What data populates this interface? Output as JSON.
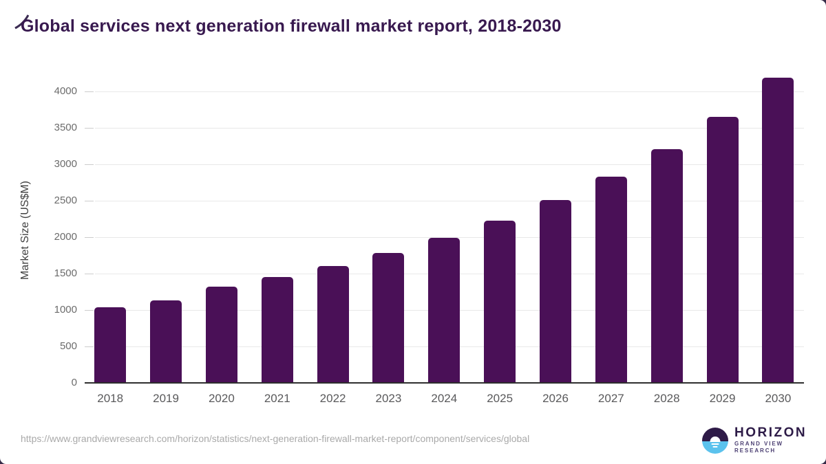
{
  "chart_data": {
    "type": "bar",
    "title": "Global services next generation firewall market report, 2018-2030",
    "categories": [
      "2018",
      "2019",
      "2020",
      "2021",
      "2022",
      "2023",
      "2024",
      "2025",
      "2026",
      "2027",
      "2028",
      "2029",
      "2030"
    ],
    "values": [
      1035,
      1135,
      1320,
      1450,
      1600,
      1780,
      1990,
      2230,
      2505,
      2830,
      3205,
      3655,
      4190
    ],
    "xlabel": "",
    "ylabel": "Market Size (US$M)",
    "ylim": [
      0,
      4000
    ],
    "yticks": [
      0,
      500,
      1000,
      1500,
      2000,
      2500,
      3000,
      3500,
      4000
    ],
    "grid": true,
    "legend": "none",
    "bar_color": "#4a1057"
  },
  "footer": {
    "source_url": "https://www.grandviewresearch.com/horizon/statistics/next-generation-firewall-market-report/component/services/global",
    "logo": {
      "brand": "HORIZON",
      "subbrand": "GRAND VIEW RESEARCH"
    }
  },
  "colors": {
    "title": "#38194f",
    "bar": "#4a1057",
    "gridline": "#e8e8e8",
    "axis_line": "#2e2e2e",
    "y_tick_label": "#6b6b6b",
    "x_tick_label": "#59595b",
    "source_url": "#a9a9a9",
    "logo_dark": "#2e1a47",
    "logo_blue": "#5bc2ed",
    "corner_decor": "#3b2b52"
  }
}
